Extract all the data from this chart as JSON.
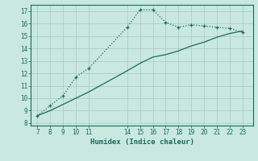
{
  "line1_x": [
    7,
    8,
    9,
    10,
    11,
    14,
    15,
    16,
    17,
    18,
    19,
    20,
    21,
    22,
    23
  ],
  "line1_y": [
    8.6,
    9.4,
    10.2,
    11.7,
    12.4,
    15.7,
    17.1,
    17.1,
    16.1,
    15.7,
    15.9,
    15.8,
    15.7,
    15.6,
    15.3
  ],
  "line2_x": [
    7,
    8,
    9,
    10,
    11,
    14,
    15,
    16,
    17,
    18,
    19,
    20,
    21,
    22,
    23
  ],
  "line2_y": [
    8.6,
    9.0,
    9.5,
    10.0,
    10.5,
    12.2,
    12.8,
    13.3,
    13.5,
    13.8,
    14.2,
    14.5,
    14.9,
    15.2,
    15.4
  ],
  "color": "#1a6b5a",
  "bg_color": "#c8e8e0",
  "grid_color": "#a8c8c0",
  "xlabel": "Humidex (Indice chaleur)",
  "ylim": [
    7.8,
    17.5
  ],
  "xlim": [
    6.5,
    23.8
  ],
  "yticks": [
    8,
    9,
    10,
    11,
    12,
    13,
    14,
    15,
    16,
    17
  ],
  "xticks": [
    7,
    8,
    9,
    10,
    11,
    14,
    15,
    16,
    17,
    18,
    19,
    20,
    21,
    22,
    23
  ]
}
